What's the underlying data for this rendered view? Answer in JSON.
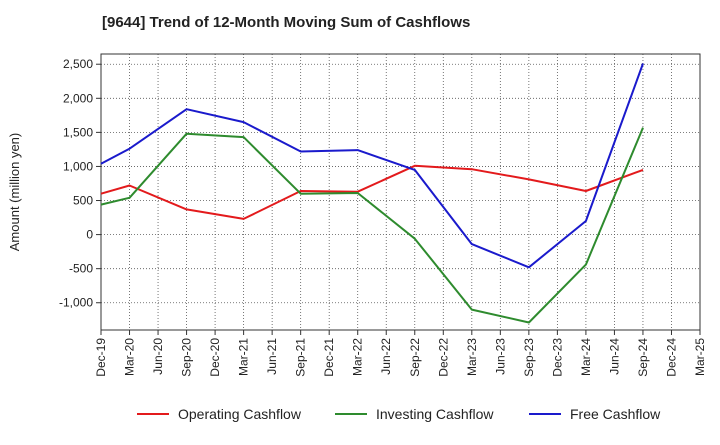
{
  "chart_data": {
    "type": "line",
    "title": "[9644]  Trend of 12-Month Moving Sum of Cashflows",
    "ylabel": "Amount (million yen)",
    "xlabel": "",
    "categories": [
      "Dec-19",
      "Mar-20",
      "Jun-20",
      "Sep-20",
      "Dec-20",
      "Mar-21",
      "Jun-21",
      "Sep-21",
      "Dec-21",
      "Mar-22",
      "Jun-22",
      "Sep-22",
      "Dec-22",
      "Mar-23",
      "Jun-23",
      "Sep-23",
      "Dec-23",
      "Mar-24",
      "Jun-24",
      "Sep-24",
      "Dec-24",
      "Mar-25"
    ],
    "ylim": [
      -1400,
      2650
    ],
    "yticks": [
      -1000,
      -500,
      0,
      500,
      1000,
      1500,
      2000,
      2500
    ],
    "ytick_labels": [
      "-1,000",
      "-500",
      "0",
      "500",
      "1,000",
      "1,500",
      "2,000",
      "2,500"
    ],
    "grid": true,
    "legend_position": "bottom",
    "series": [
      {
        "name": "Operating Cashflow",
        "color": "#e31a1c",
        "values": [
          600,
          720,
          null,
          370,
          null,
          230,
          null,
          640,
          null,
          630,
          null,
          1010,
          null,
          960,
          null,
          810,
          null,
          640,
          null,
          950,
          null,
          null
        ]
      },
      {
        "name": "Investing Cashflow",
        "color": "#2e8b2e",
        "values": [
          440,
          540,
          null,
          1480,
          null,
          1430,
          null,
          600,
          null,
          610,
          null,
          -60,
          null,
          -1100,
          null,
          -1290,
          null,
          -440,
          null,
          1570,
          null,
          null
        ]
      },
      {
        "name": "Free Cashflow",
        "color": "#1a1acc",
        "values": [
          1040,
          1260,
          null,
          1840,
          null,
          1650,
          null,
          1220,
          null,
          1240,
          null,
          950,
          null,
          -140,
          null,
          -480,
          null,
          200,
          null,
          2510,
          null,
          null
        ]
      }
    ]
  }
}
